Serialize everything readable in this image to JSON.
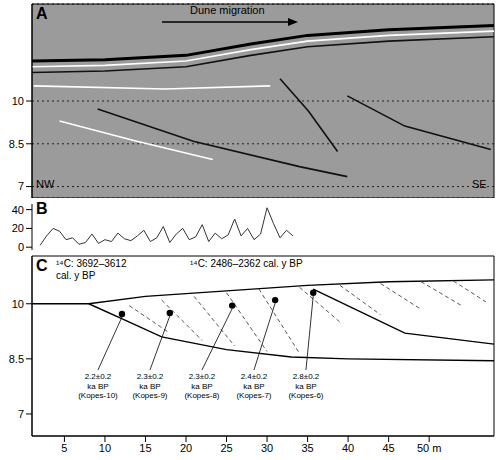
{
  "chart_data": [
    {
      "type": "line",
      "title": "A",
      "annotations": [
        "Dune migration",
        "NW",
        "SE"
      ],
      "xlim": [
        1,
        58
      ],
      "ylim": [
        6.6,
        13.4
      ],
      "yticks": [
        7,
        8.5,
        10
      ],
      "grid": true,
      "tick_labels": "y",
      "series": [
        {
          "color": "#000000",
          "x": [
            1,
            10,
            20,
            28,
            35,
            45,
            58
          ],
          "values": [
            11.4,
            11.45,
            11.6,
            12.0,
            12.3,
            12.5,
            12.65
          ]
        },
        {
          "color": "#ffffff",
          "x": [
            1,
            10,
            20,
            28,
            35,
            45,
            58
          ],
          "values": [
            11.2,
            11.25,
            11.4,
            11.8,
            12.1,
            12.3,
            12.45
          ]
        },
        {
          "color": "#111111",
          "x": [
            1,
            10,
            20,
            28,
            35,
            45,
            58
          ],
          "values": [
            11.0,
            11.05,
            11.2,
            11.6,
            11.9,
            12.1,
            12.25
          ]
        },
        {
          "color": "#ffffff",
          "x": [
            1.2,
            17.4,
            30.4
          ],
          "values": [
            10.53,
            10.42,
            10.53
          ]
        },
        {
          "color": "#111111",
          "x": [
            9.1,
            20.9,
            34,
            39.9
          ],
          "values": [
            9.72,
            8.59,
            7.7,
            7.35
          ]
        },
        {
          "color": "#ffffff",
          "x": [
            4.4,
            13.8,
            23.3
          ],
          "values": [
            9.3,
            8.6,
            7.95
          ]
        },
        {
          "color": "#111111",
          "x": [
            31.6,
            35.1,
            38.7
          ],
          "values": [
            10.78,
            9.65,
            8.23
          ]
        },
        {
          "color": "#111111",
          "x": [
            39.9,
            47,
            57.6
          ],
          "values": [
            10.18,
            9.12,
            8.3
          ]
        }
      ]
    },
    {
      "type": "line",
      "title": "B",
      "xlim": [
        1,
        58
      ],
      "ylim": [
        -3,
        46
      ],
      "yticks": [
        0,
        20,
        40
      ],
      "tick_labels": "y",
      "color": "#333333",
      "x": [
        2,
        2.8,
        3.6,
        4.4,
        5.2,
        6,
        6.8,
        7.6,
        8.4,
        9.2,
        10,
        10.8,
        11.6,
        12.4,
        13.2,
        14,
        14.8,
        15.6,
        16.4,
        17.2,
        18,
        18.8,
        19.6,
        20.4,
        21.2,
        22,
        22.8,
        23.6,
        24.4,
        25.2,
        26,
        26.8,
        27.6,
        28.4,
        29.2,
        30,
        30.8,
        31.6,
        32.4,
        33.2
      ],
      "values": [
        2,
        12,
        20,
        17,
        8,
        10,
        3,
        5,
        14,
        4,
        8,
        6,
        15,
        9,
        7,
        12,
        18,
        6,
        10,
        22,
        5,
        14,
        20,
        8,
        11,
        24,
        6,
        15,
        9,
        13,
        30,
        12,
        20,
        8,
        14,
        42,
        25,
        10,
        18,
        12
      ]
    },
    {
      "type": "line",
      "title": "C",
      "xlim": [
        1,
        58
      ],
      "xticks": [
        5,
        10,
        15,
        20,
        25,
        30,
        35,
        40,
        45,
        {
          "value": 50,
          "label": "50 m"
        }
      ],
      "ylim": [
        6.4,
        11.3
      ],
      "yticks": [
        7,
        8.5,
        10
      ],
      "annotations": [
        {
          "lines": [
            "¹⁴C: 3692–3612",
            "cal. y BP"
          ]
        },
        {
          "lines": [
            "¹⁴C: 2486–2362 cal. y BP"
          ]
        }
      ],
      "series": [
        {
          "color": "#000000",
          "line_style": "solid",
          "x": [
            1,
            8,
            15,
            25,
            35,
            45,
            58
          ],
          "values": [
            10.0,
            10.0,
            10.2,
            10.35,
            10.5,
            10.6,
            10.65
          ]
        },
        {
          "color": "#000000",
          "line_style": "solid",
          "x": [
            8,
            12,
            17,
            25,
            33,
            40,
            58
          ],
          "values": [
            10.0,
            9.6,
            9.1,
            8.75,
            8.55,
            8.5,
            8.45
          ]
        },
        {
          "color": "#000000",
          "line_style": "solid",
          "x": [
            35.7,
            47,
            58
          ],
          "values": [
            10.4,
            9.2,
            8.9
          ]
        },
        {
          "color": "#555555",
          "line_style": "dashed",
          "x": [
            13,
            18
          ],
          "values": [
            9.95,
            9.2
          ]
        },
        {
          "color": "#555555",
          "line_style": "dashed",
          "x": [
            17,
            22
          ],
          "values": [
            10.1,
            9.0
          ]
        },
        {
          "color": "#555555",
          "line_style": "dashed",
          "x": [
            21,
            26
          ],
          "values": [
            10.2,
            8.85
          ]
        },
        {
          "color": "#555555",
          "line_style": "dashed",
          "x": [
            25,
            30
          ],
          "values": [
            10.3,
            8.7
          ]
        },
        {
          "color": "#555555",
          "line_style": "dashed",
          "x": [
            29,
            34
          ],
          "values": [
            10.4,
            8.65
          ]
        },
        {
          "color": "#555555",
          "line_style": "dashed",
          "x": [
            34,
            39
          ],
          "values": [
            10.45,
            9.5
          ]
        },
        {
          "color": "#555555",
          "line_style": "dashed",
          "x": [
            39,
            44
          ],
          "values": [
            10.5,
            9.7
          ]
        },
        {
          "color": "#555555",
          "line_style": "dashed",
          "x": [
            44,
            49
          ],
          "values": [
            10.55,
            9.85
          ]
        },
        {
          "color": "#555555",
          "line_style": "dashed",
          "x": [
            49,
            54
          ],
          "values": [
            10.6,
            9.95
          ]
        },
        {
          "color": "#555555",
          "line_style": "dashed",
          "x": [
            53,
            57
          ],
          "values": [
            10.62,
            10.05
          ]
        }
      ],
      "samples": [
        {
          "x": 12.1,
          "y": 9.72,
          "label_lines": [
            "2.2±0.2",
            "ka BP",
            "(Kopes-10)"
          ]
        },
        {
          "x": 18,
          "y": 9.75,
          "label_lines": [
            "2.3±0.2",
            "ka BP",
            "(Kopes-9)"
          ]
        },
        {
          "x": 25.7,
          "y": 9.95,
          "label_lines": [
            "2.3±0.2",
            "ka BP",
            "(Kopes-8)"
          ]
        },
        {
          "x": 31,
          "y": 10.1,
          "label_lines": [
            "2.4±0.2",
            "ka BP",
            "(Kopes-7)"
          ]
        },
        {
          "x": 35.7,
          "y": 10.3,
          "label_lines": [
            "2.8±0.2",
            "ka BP",
            "(Kopes-6)"
          ]
        }
      ]
    }
  ]
}
